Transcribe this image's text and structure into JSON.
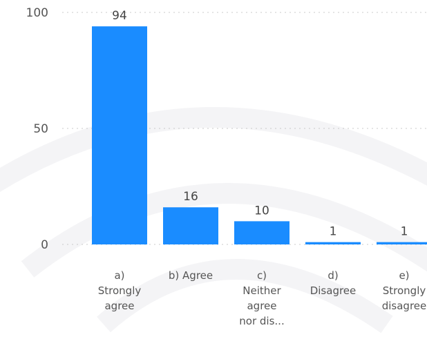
{
  "chart_data": {
    "type": "bar",
    "categories": [
      [
        "a)",
        "Strongly",
        "agree"
      ],
      [
        "b) Agree"
      ],
      [
        "c)",
        "Neither",
        "agree",
        "nor dis..."
      ],
      [
        "d)",
        "Disagree"
      ],
      [
        "e)",
        "Strongly",
        "disagree"
      ]
    ],
    "values": [
      94,
      16,
      10,
      1,
      1
    ],
    "data_labels": [
      "94",
      "16",
      "10",
      "1",
      "1"
    ],
    "yticks": [
      "0",
      "50",
      "100"
    ],
    "ylim": [
      0,
      100
    ],
    "bar_color": "#1a8cff",
    "grid": "dotted horizontal",
    "legend": "none"
  }
}
